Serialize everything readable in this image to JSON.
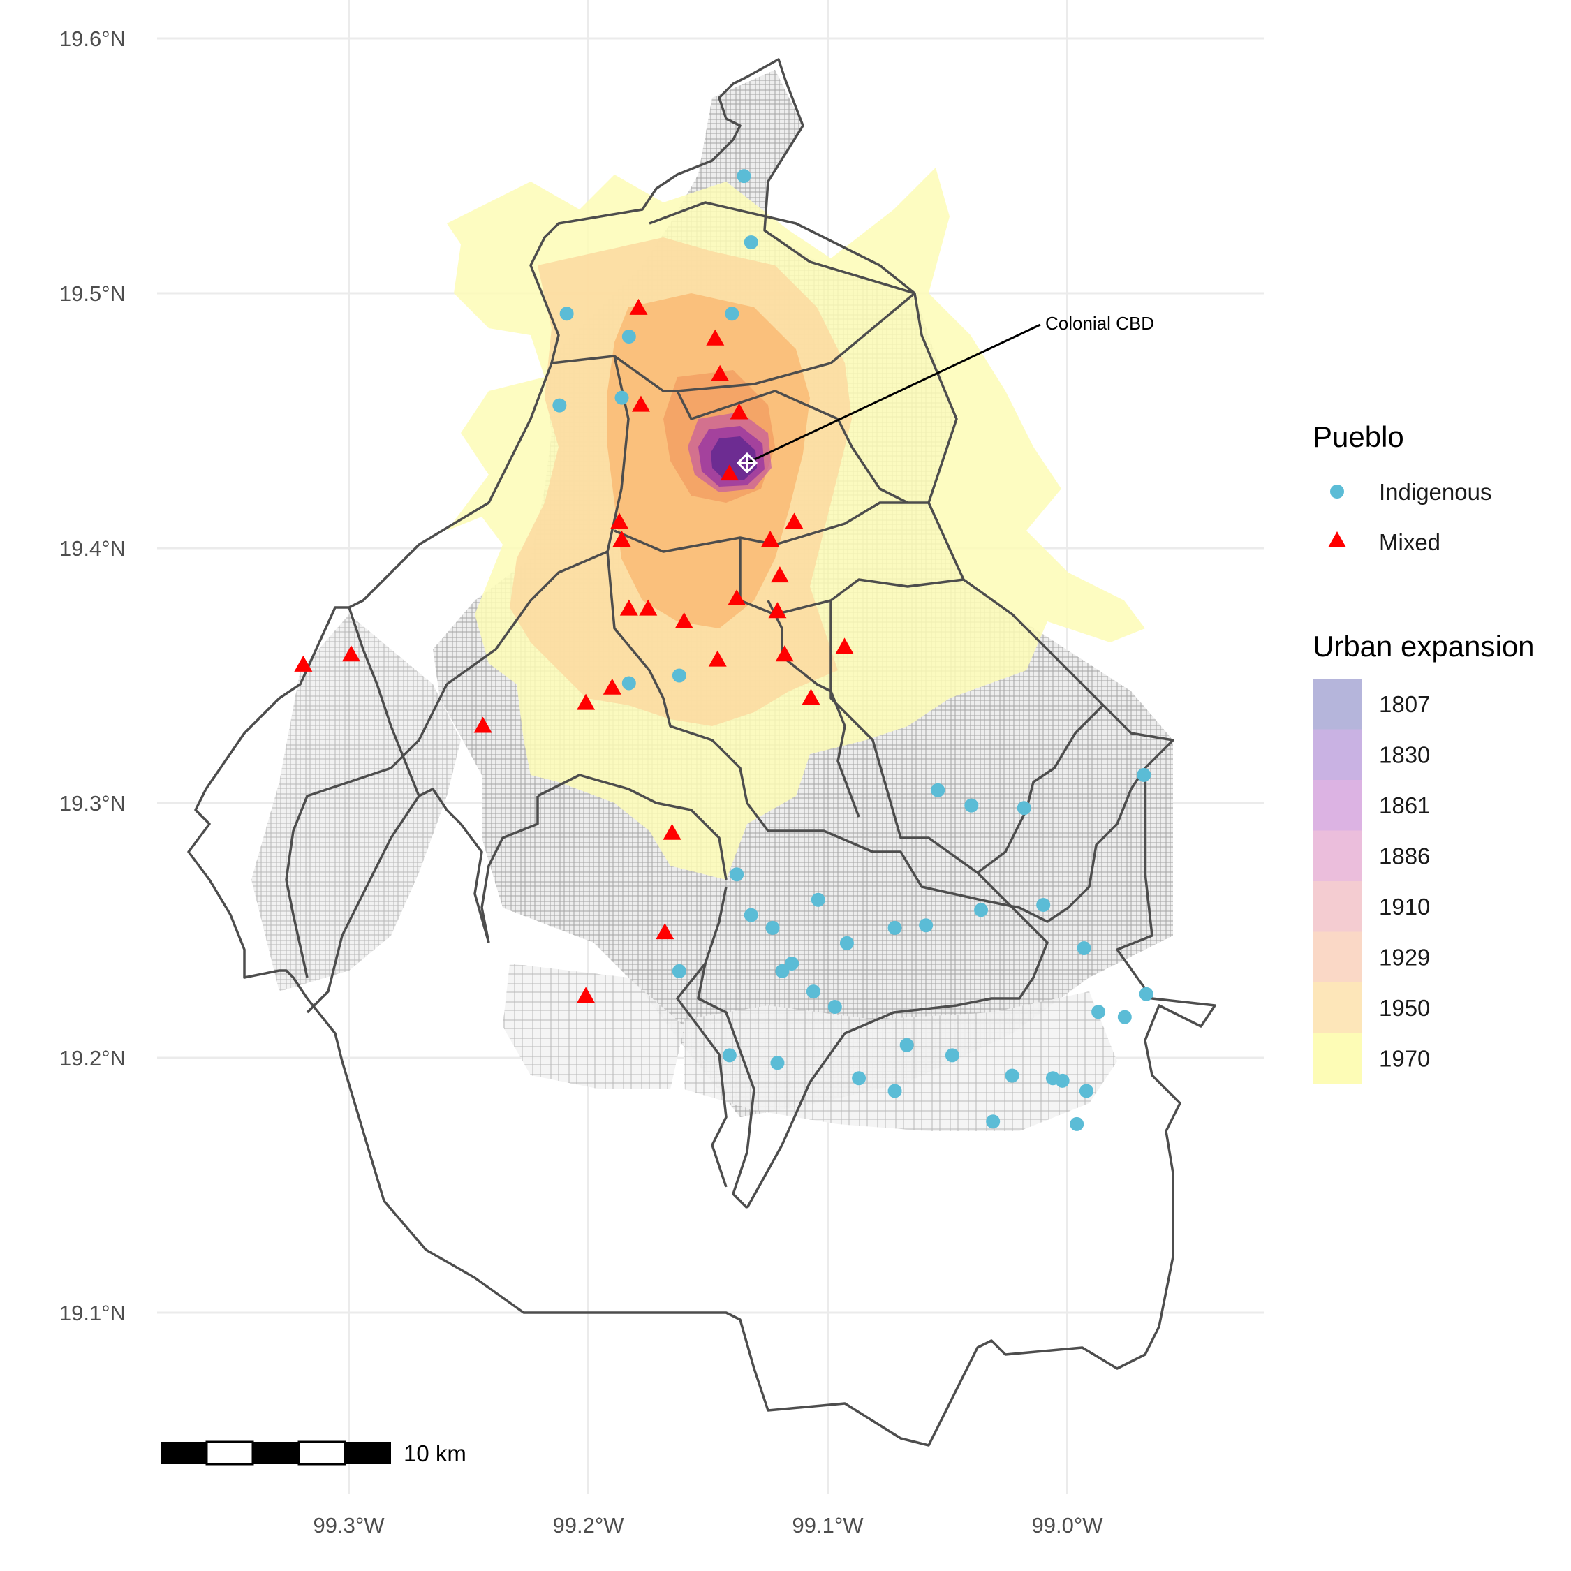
{
  "chart_data": {
    "type": "map",
    "title": "",
    "x_axis": {
      "ticks": [
        "99.3°W",
        "99.2°W",
        "99.1°W",
        "99.0°W"
      ],
      "values": [
        -99.3,
        -99.2,
        -99.1,
        -99.0
      ]
    },
    "y_axis": {
      "ticks": [
        "19.6°N",
        "19.5°N",
        "19.4°N",
        "19.3°N",
        "19.2°N",
        "19.1°N"
      ],
      "values": [
        19.6,
        19.5,
        19.4,
        19.3,
        19.2,
        19.1
      ]
    },
    "grid": true,
    "annotation": {
      "label": "Colonial CBD",
      "lon": -99.133,
      "lat": 19.433
    },
    "scale_bar": {
      "label": "10 km"
    },
    "legend_position": "right",
    "legends": {
      "pueblo": {
        "title": "Pueblo",
        "items": [
          {
            "label": "Indigenous",
            "color": "#5bbcd6",
            "shape": "circle"
          },
          {
            "label": "Mixed",
            "color": "#ff0000",
            "shape": "triangle"
          }
        ]
      },
      "urban": {
        "title": "Urban expansion",
        "items": [
          {
            "label": "1807",
            "color": "#b5b5db"
          },
          {
            "label": "1830",
            "color": "#c9b2e3"
          },
          {
            "label": "1861",
            "color": "#dcb3e3"
          },
          {
            "label": "1886",
            "color": "#ebbedc"
          },
          {
            "label": "1910",
            "color": "#f4ccd1"
          },
          {
            "label": "1929",
            "color": "#fad8c6"
          },
          {
            "label": "1950",
            "color": "#fde6b9"
          },
          {
            "label": "1970",
            "color": "#fdfcb6"
          }
        ]
      }
    },
    "pueblos": {
      "indigenous": [
        [
          -99.135,
          19.546
        ],
        [
          -99.132,
          19.52
        ],
        [
          -99.14,
          19.492
        ],
        [
          -99.209,
          19.492
        ],
        [
          -99.183,
          19.483
        ],
        [
          -99.212,
          19.456
        ],
        [
          -99.186,
          19.459
        ],
        [
          -99.183,
          19.347
        ],
        [
          -99.162,
          19.35
        ],
        [
          -99.138,
          19.272
        ],
        [
          -99.132,
          19.256
        ],
        [
          -99.123,
          19.251
        ],
        [
          -99.104,
          19.262
        ],
        [
          -99.119,
          19.234
        ],
        [
          -99.115,
          19.237
        ],
        [
          -99.092,
          19.245
        ],
        [
          -99.072,
          19.251
        ],
        [
          -99.059,
          19.252
        ],
        [
          -99.036,
          19.258
        ],
        [
          -99.01,
          19.26
        ],
        [
          -99.106,
          19.226
        ],
        [
          -99.097,
          19.22
        ],
        [
          -99.162,
          19.234
        ],
        [
          -99.141,
          19.201
        ],
        [
          -99.121,
          19.198
        ],
        [
          -99.087,
          19.192
        ],
        [
          -99.072,
          19.187
        ],
        [
          -99.067,
          19.205
        ],
        [
          -99.048,
          19.201
        ],
        [
          -99.031,
          19.175
        ],
        [
          -99.023,
          19.193
        ],
        [
          -99.006,
          19.192
        ],
        [
          -99.002,
          19.191
        ],
        [
          -98.992,
          19.187
        ],
        [
          -98.996,
          19.174
        ],
        [
          -98.993,
          19.243
        ],
        [
          -98.987,
          19.218
        ],
        [
          -98.976,
          19.216
        ],
        [
          -98.967,
          19.225
        ],
        [
          -98.968,
          19.311
        ],
        [
          -99.054,
          19.305
        ],
        [
          -99.04,
          19.299
        ],
        [
          -99.018,
          19.298
        ]
      ],
      "mixed": [
        [
          -99.179,
          19.494
        ],
        [
          -99.147,
          19.482
        ],
        [
          -99.145,
          19.468
        ],
        [
          -99.178,
          19.456
        ],
        [
          -99.137,
          19.453
        ],
        [
          -99.141,
          19.429
        ],
        [
          -99.187,
          19.41
        ],
        [
          -99.186,
          19.403
        ],
        [
          -99.114,
          19.41
        ],
        [
          -99.124,
          19.403
        ],
        [
          -99.12,
          19.389
        ],
        [
          -99.183,
          19.376
        ],
        [
          -99.175,
          19.376
        ],
        [
          -99.138,
          19.38
        ],
        [
          -99.121,
          19.375
        ],
        [
          -99.16,
          19.371
        ],
        [
          -99.146,
          19.356
        ],
        [
          -99.118,
          19.358
        ],
        [
          -99.093,
          19.361
        ],
        [
          -99.19,
          19.345
        ],
        [
          -99.201,
          19.339
        ],
        [
          -99.107,
          19.341
        ],
        [
          -99.244,
          19.33
        ],
        [
          -99.319,
          19.354
        ],
        [
          -99.299,
          19.358
        ],
        [
          -99.165,
          19.288
        ],
        [
          -99.168,
          19.249
        ],
        [
          -99.201,
          19.224
        ]
      ]
    }
  }
}
